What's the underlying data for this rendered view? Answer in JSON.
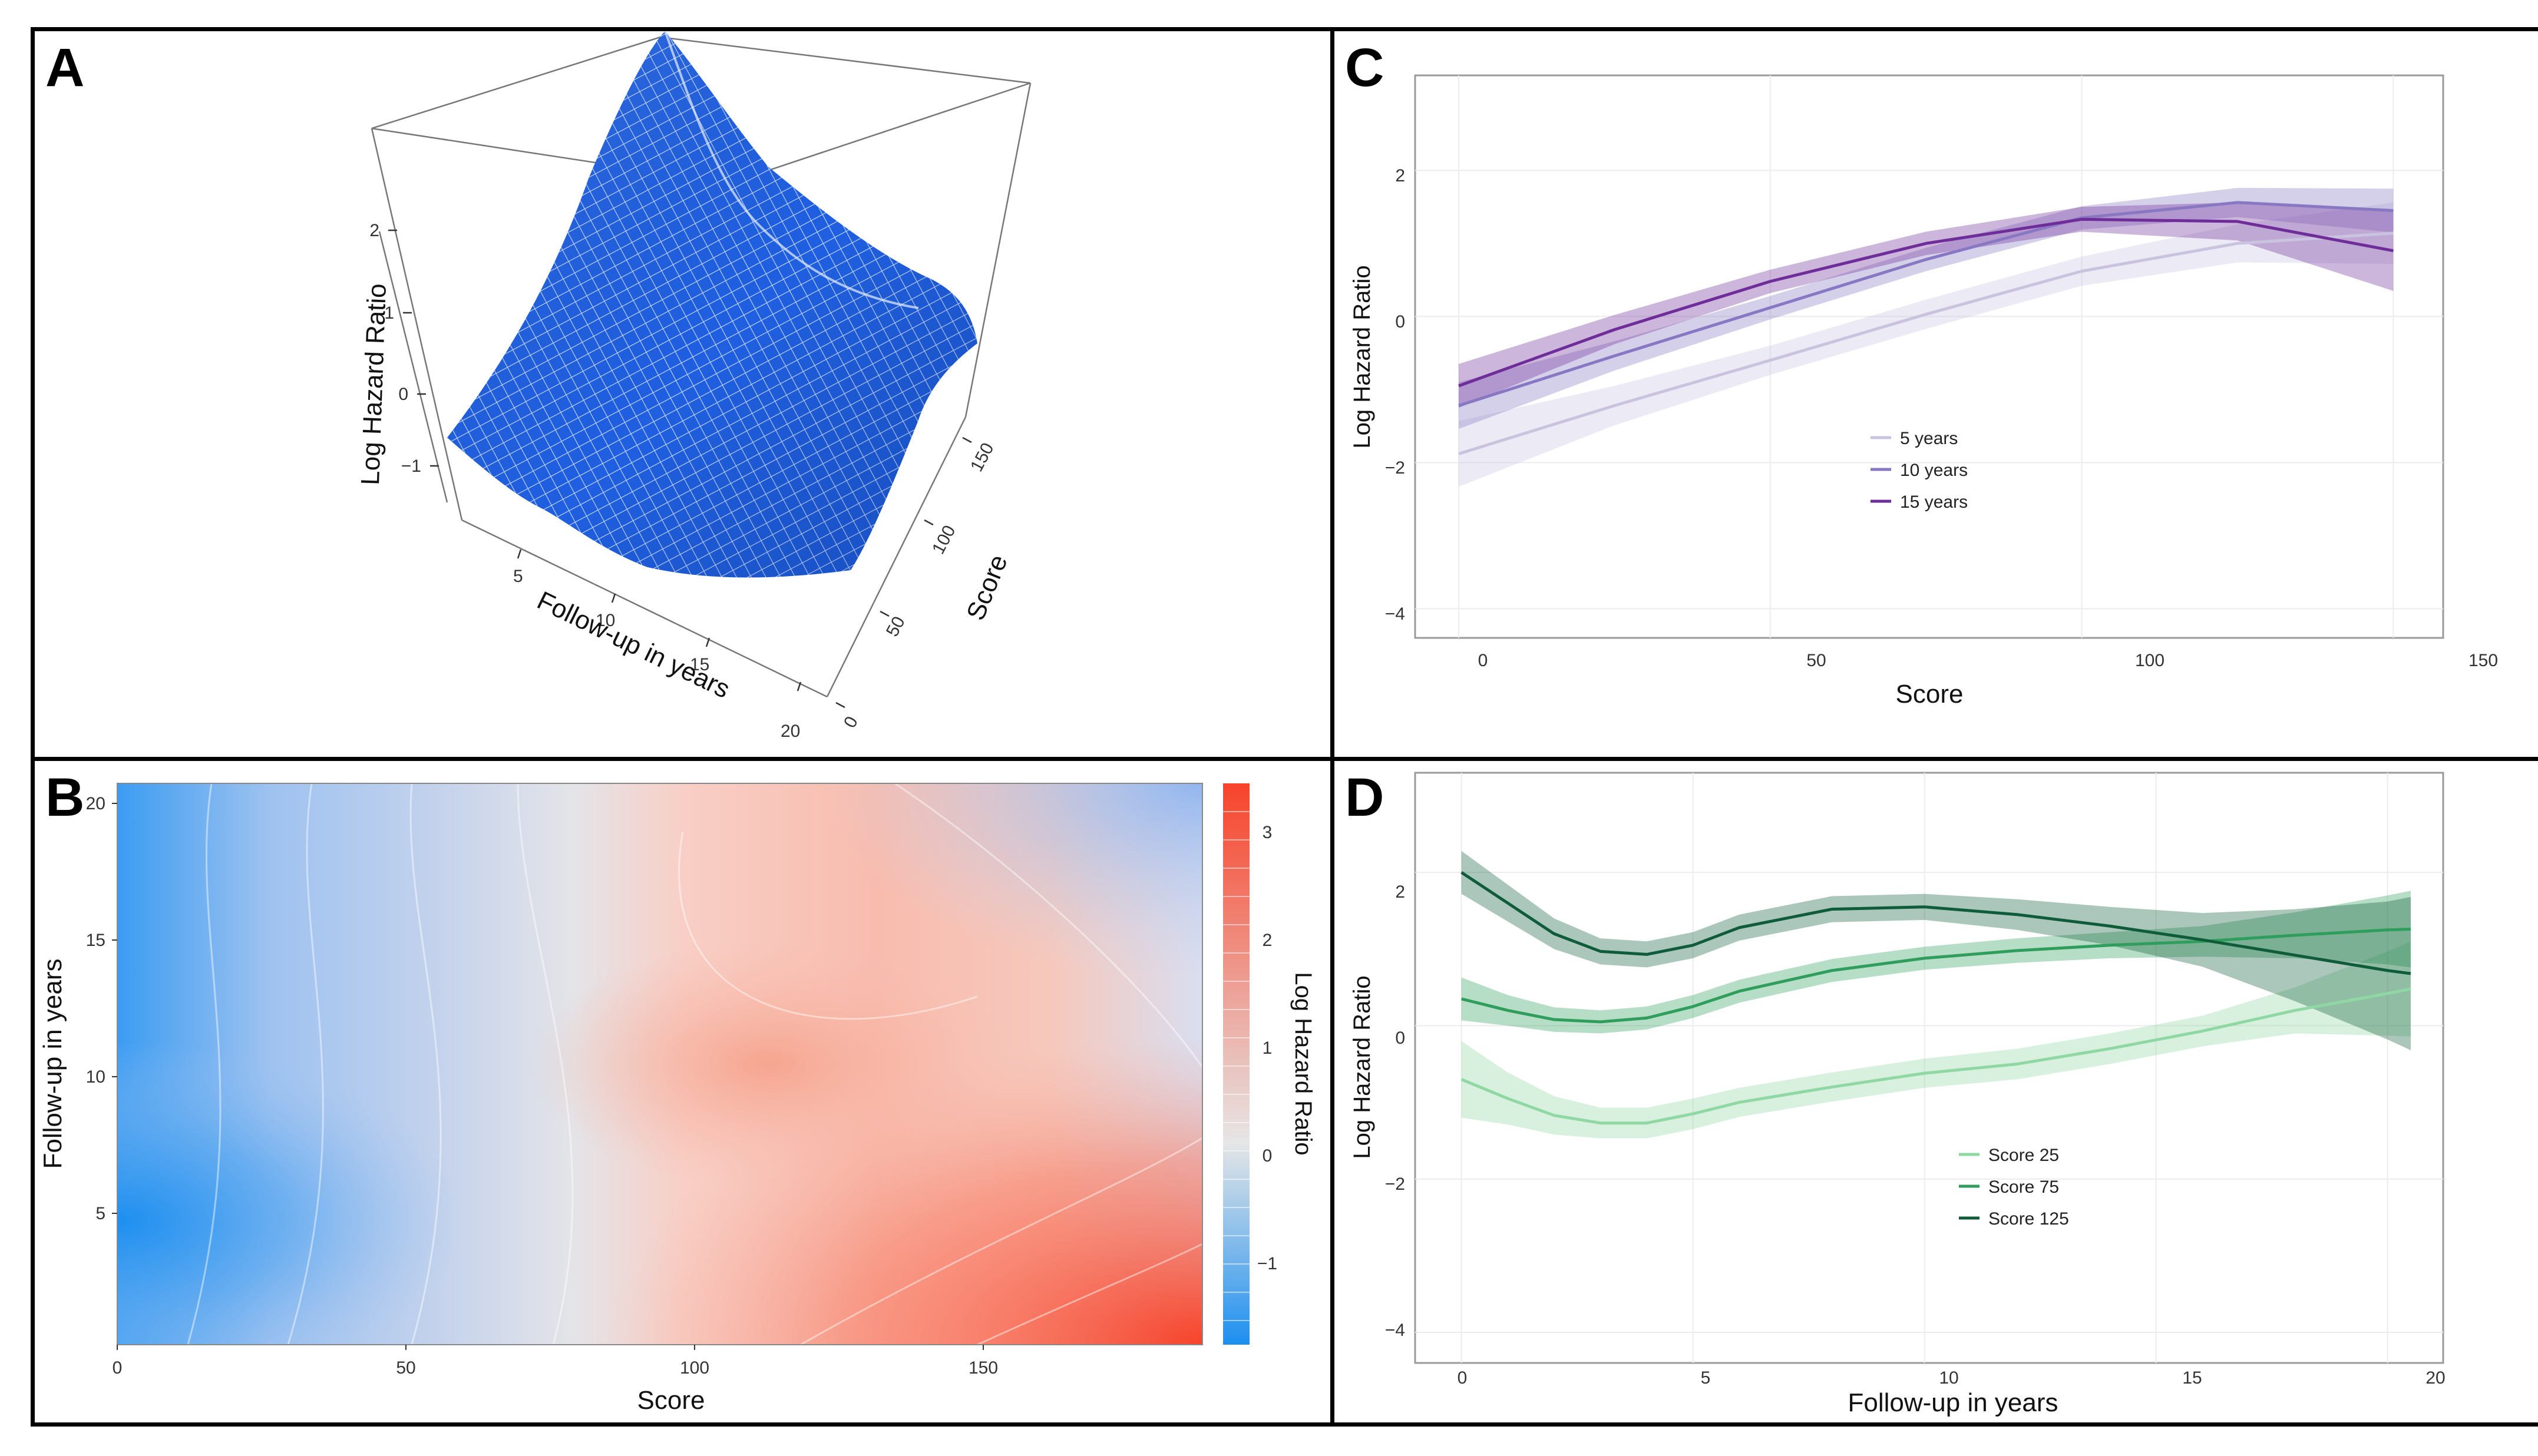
{
  "figure": {
    "panel_labels": {
      "a": "A",
      "b": "B",
      "c": "C",
      "d": "D"
    }
  },
  "chart_data": [
    {
      "id": "A",
      "type": "surface3d",
      "title": "",
      "xlabel": "Follow-up in years",
      "ylabel": "Score",
      "zlabel": "Log Hazard Ratio",
      "x_ticks": [
        "5",
        "10",
        "15",
        "20"
      ],
      "y_ticks": [
        "0",
        "50",
        "100",
        "150"
      ],
      "z_ticks": [
        "2",
        "1",
        "0",
        "−1"
      ],
      "surface_color": "#1f5fe0",
      "grid_line_color": "#c9dcff"
    },
    {
      "id": "B",
      "type": "heatmap",
      "xlabel": "Score",
      "ylabel": "Follow-up in years",
      "x_ticks": [
        "0",
        "50",
        "100",
        "150"
      ],
      "y_ticks": [
        "5",
        "10",
        "15",
        "20"
      ],
      "xlim": [
        0,
        188
      ],
      "ylim": [
        0,
        20.5
      ],
      "colorbar_label": "Log Hazard Ratio",
      "colorbar_ticks": [
        "3",
        "2",
        "1",
        "0",
        "−1"
      ],
      "colorbar_range": [
        -1.9,
        3.4
      ],
      "colormap": {
        "low": "#1d8ff0",
        "mid": "#e6e6e6",
        "high": "#f7432a"
      }
    },
    {
      "id": "C",
      "type": "line",
      "xlabel": "Score",
      "ylabel": "Log Hazard Ratio",
      "x_ticks": [
        "0",
        "50",
        "100",
        "150"
      ],
      "y_ticks": [
        "2",
        "0",
        "−2",
        "−4"
      ],
      "xlim": [
        -7,
        158
      ],
      "ylim": [
        -4.4,
        3.3
      ],
      "x": [
        0,
        25,
        50,
        75,
        100,
        125,
        150
      ],
      "series": [
        {
          "name": "5  years",
          "color": "#c9c3e0",
          "values": [
            -1.88,
            -1.22,
            -0.6,
            0.03,
            0.62,
            1.0,
            1.14
          ],
          "ci": [
            0.45,
            0.27,
            0.2,
            0.2,
            0.2,
            0.26,
            0.42
          ]
        },
        {
          "name": "10 years",
          "color": "#8877c2",
          "values": [
            -1.22,
            -0.54,
            0.12,
            0.78,
            1.35,
            1.56,
            1.45
          ],
          "ci": [
            0.32,
            0.2,
            0.16,
            0.16,
            0.16,
            0.2,
            0.3
          ]
        },
        {
          "name": "15 years",
          "color": "#6f2d9a",
          "values": [
            -0.95,
            -0.18,
            0.48,
            1.0,
            1.33,
            1.3,
            0.9
          ],
          "ci": [
            0.3,
            0.2,
            0.16,
            0.16,
            0.17,
            0.26,
            0.55
          ]
        }
      ]
    },
    {
      "id": "D",
      "type": "line",
      "xlabel": "Follow-up in years",
      "ylabel": "Log Hazard Ratio",
      "x_ticks": [
        "0",
        "5",
        "10",
        "15",
        "20"
      ],
      "y_ticks": [
        "2",
        "0",
        "−2",
        "−4"
      ],
      "xlim": [
        -1,
        21.2
      ],
      "ylim": [
        -4.4,
        3.3
      ],
      "x": [
        0,
        1,
        2,
        3,
        4,
        5,
        6,
        8,
        10,
        12,
        14,
        16,
        18,
        20,
        20.5
      ],
      "series": [
        {
          "name": "Score 25",
          "color": "#8fd8a4",
          "values": [
            -0.7,
            -0.95,
            -1.17,
            -1.27,
            -1.27,
            -1.15,
            -1.0,
            -0.8,
            -0.62,
            -0.5,
            -0.3,
            -0.07,
            0.2,
            0.42,
            0.48
          ],
          "ci": [
            0.5,
            0.34,
            0.25,
            0.2,
            0.2,
            0.2,
            0.19,
            0.19,
            0.19,
            0.2,
            0.2,
            0.2,
            0.3,
            0.55,
            0.62
          ]
        },
        {
          "name": "Score 75",
          "color": "#2f9e5c",
          "values": [
            0.35,
            0.2,
            0.08,
            0.05,
            0.1,
            0.25,
            0.45,
            0.72,
            0.88,
            0.98,
            1.05,
            1.1,
            1.18,
            1.25,
            1.26
          ],
          "ci": [
            0.28,
            0.2,
            0.16,
            0.15,
            0.15,
            0.15,
            0.15,
            0.15,
            0.15,
            0.16,
            0.17,
            0.2,
            0.3,
            0.45,
            0.5
          ]
        },
        {
          "name": "Score 125",
          "color": "#0e5c3a",
          "values": [
            2.0,
            1.6,
            1.2,
            0.97,
            0.93,
            1.05,
            1.28,
            1.52,
            1.55,
            1.45,
            1.3,
            1.12,
            0.92,
            0.72,
            0.68
          ],
          "ci": [
            0.28,
            0.24,
            0.2,
            0.17,
            0.17,
            0.17,
            0.17,
            0.17,
            0.17,
            0.2,
            0.25,
            0.35,
            0.6,
            0.9,
            1.0
          ]
        }
      ]
    }
  ]
}
